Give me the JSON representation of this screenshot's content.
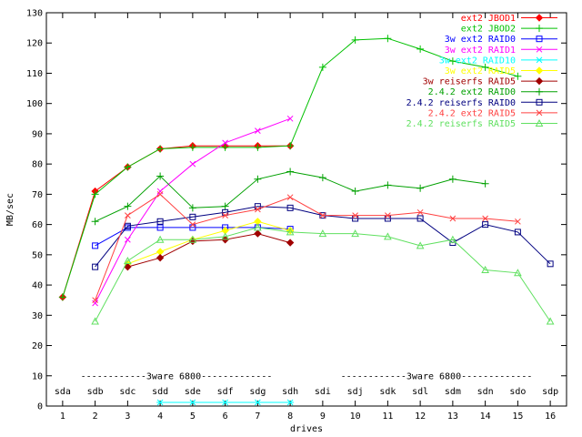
{
  "chart_data": {
    "type": "line",
    "title": "",
    "xlabel": "drives",
    "ylabel": "MB/sec",
    "xlim": [
      0.5,
      16.5
    ],
    "ylim": [
      0,
      130
    ],
    "x_ticks": [
      1,
      2,
      3,
      4,
      5,
      6,
      7,
      8,
      9,
      10,
      11,
      12,
      13,
      14,
      15,
      16
    ],
    "y_ticks": [
      0,
      10,
      20,
      30,
      40,
      50,
      60,
      70,
      80,
      90,
      100,
      110,
      120,
      130
    ],
    "grid": false,
    "legend_position": "top-right",
    "drive_labels": [
      "sda",
      "sdb",
      "sdc",
      "sdd",
      "sde",
      "sdf",
      "sdg",
      "sdh",
      "sdi",
      "sdj",
      "sdk",
      "sdl",
      "sdm",
      "sdn",
      "sdo",
      "sdp"
    ],
    "drive_labels_y": 5,
    "annotations": [
      {
        "text": "------------3ware 6800-------------",
        "x_from": 1,
        "x_to": 8,
        "y": 10
      },
      {
        "text": "------------3ware 6800-------------",
        "x_from": 9,
        "x_to": 16,
        "y": 10
      }
    ],
    "series": [
      {
        "name": "ext2 JBOD1",
        "color": "#ff0000",
        "marker": "diamond",
        "points": [
          [
            1,
            36
          ],
          [
            2,
            71
          ],
          [
            3,
            79
          ],
          [
            4,
            85
          ],
          [
            5,
            86
          ],
          [
            6,
            86
          ],
          [
            7,
            86
          ],
          [
            8,
            86
          ]
        ]
      },
      {
        "name": "ext2 JBOD2",
        "color": "#00c000",
        "marker": "plus",
        "points": [
          [
            1,
            36
          ],
          [
            2,
            70
          ],
          [
            3,
            79
          ],
          [
            4,
            85
          ],
          [
            5,
            85.5
          ],
          [
            6,
            85.5
          ],
          [
            7,
            85.5
          ],
          [
            8,
            86
          ],
          [
            9,
            112
          ],
          [
            10,
            121
          ],
          [
            11,
            121.5
          ],
          [
            12,
            118
          ],
          [
            13,
            114
          ],
          [
            14,
            112
          ],
          [
            15,
            109
          ]
        ]
      },
      {
        "name": "3w ext2 RAID0",
        "color": "#0000ff",
        "marker": "square",
        "points": [
          [
            2,
            53
          ],
          [
            3,
            59
          ],
          [
            4,
            59
          ],
          [
            5,
            59
          ],
          [
            6,
            59
          ],
          [
            7,
            59
          ],
          [
            8,
            58.5
          ]
        ]
      },
      {
        "name": "3w ext2 RAID1",
        "color": "#ff00ff",
        "marker": "x",
        "points": [
          [
            2,
            34
          ],
          [
            3,
            55
          ],
          [
            4,
            71
          ],
          [
            5,
            80
          ],
          [
            6,
            87
          ],
          [
            7,
            91
          ],
          [
            8,
            95
          ]
        ]
      },
      {
        "name": "3w ext2 RAID10",
        "color": "#00ffff",
        "marker": "star",
        "points": [
          [
            4,
            1.2
          ],
          [
            5,
            1.2
          ],
          [
            6,
            1.2
          ],
          [
            7,
            1.2
          ],
          [
            8,
            1.2
          ]
        ]
      },
      {
        "name": "3w ext2 RAID5",
        "color": "#ffff00",
        "marker": "diamond",
        "points": [
          [
            3,
            47
          ],
          [
            4,
            51
          ],
          [
            5,
            55
          ],
          [
            6,
            58
          ],
          [
            7,
            61
          ],
          [
            8,
            58
          ]
        ]
      },
      {
        "name": "3w reiserfs RAID5",
        "color": "#a00000",
        "marker": "diamond",
        "points": [
          [
            3,
            46
          ],
          [
            4,
            49
          ],
          [
            5,
            54.5
          ],
          [
            6,
            55
          ],
          [
            7,
            57
          ],
          [
            8,
            54
          ]
        ]
      },
      {
        "name": "2.4.2 ext2 RAID0",
        "color": "#00a000",
        "marker": "plus",
        "points": [
          [
            2,
            61
          ],
          [
            3,
            66
          ],
          [
            4,
            76
          ],
          [
            5,
            65.5
          ],
          [
            6,
            66
          ],
          [
            7,
            75
          ],
          [
            8,
            77.5
          ],
          [
            9,
            75.5
          ],
          [
            10,
            71
          ],
          [
            11,
            73
          ],
          [
            12,
            72
          ],
          [
            13,
            75
          ],
          [
            14,
            73.5
          ]
        ]
      },
      {
        "name": "2.4.2 reiserfs RAID0",
        "color": "#000080",
        "marker": "square",
        "points": [
          [
            2,
            46
          ],
          [
            3,
            59.5
          ],
          [
            4,
            61
          ],
          [
            5,
            62.5
          ],
          [
            6,
            64
          ],
          [
            7,
            66
          ],
          [
            8,
            65.5
          ],
          [
            9,
            63
          ],
          [
            10,
            62
          ],
          [
            11,
            62
          ],
          [
            12,
            62
          ],
          [
            13,
            54
          ],
          [
            14,
            60
          ],
          [
            15,
            57.5
          ],
          [
            16,
            47
          ]
        ]
      },
      {
        "name": "2.4.2 ext2 RAID5",
        "color": "#ff4040",
        "marker": "x",
        "points": [
          [
            2,
            35
          ],
          [
            3,
            63
          ],
          [
            4,
            70
          ],
          [
            5,
            60
          ],
          [
            6,
            63
          ],
          [
            7,
            65
          ],
          [
            8,
            69
          ],
          [
            9,
            63
          ],
          [
            10,
            63
          ],
          [
            11,
            63
          ],
          [
            12,
            64
          ],
          [
            13,
            62
          ],
          [
            14,
            62
          ],
          [
            15,
            61
          ]
        ]
      },
      {
        "name": "2.4.2 reiserfs RAID5",
        "color": "#60e060",
        "marker": "triangle",
        "points": [
          [
            2,
            28
          ],
          [
            3,
            48
          ],
          [
            4,
            55
          ],
          [
            5,
            55
          ],
          [
            6,
            56
          ],
          [
            7,
            59
          ],
          [
            8,
            57.5
          ],
          [
            9,
            57
          ],
          [
            10,
            57
          ],
          [
            11,
            56
          ],
          [
            12,
            53
          ],
          [
            13,
            55
          ],
          [
            14,
            45
          ],
          [
            15,
            44
          ],
          [
            16,
            28
          ]
        ]
      }
    ]
  }
}
